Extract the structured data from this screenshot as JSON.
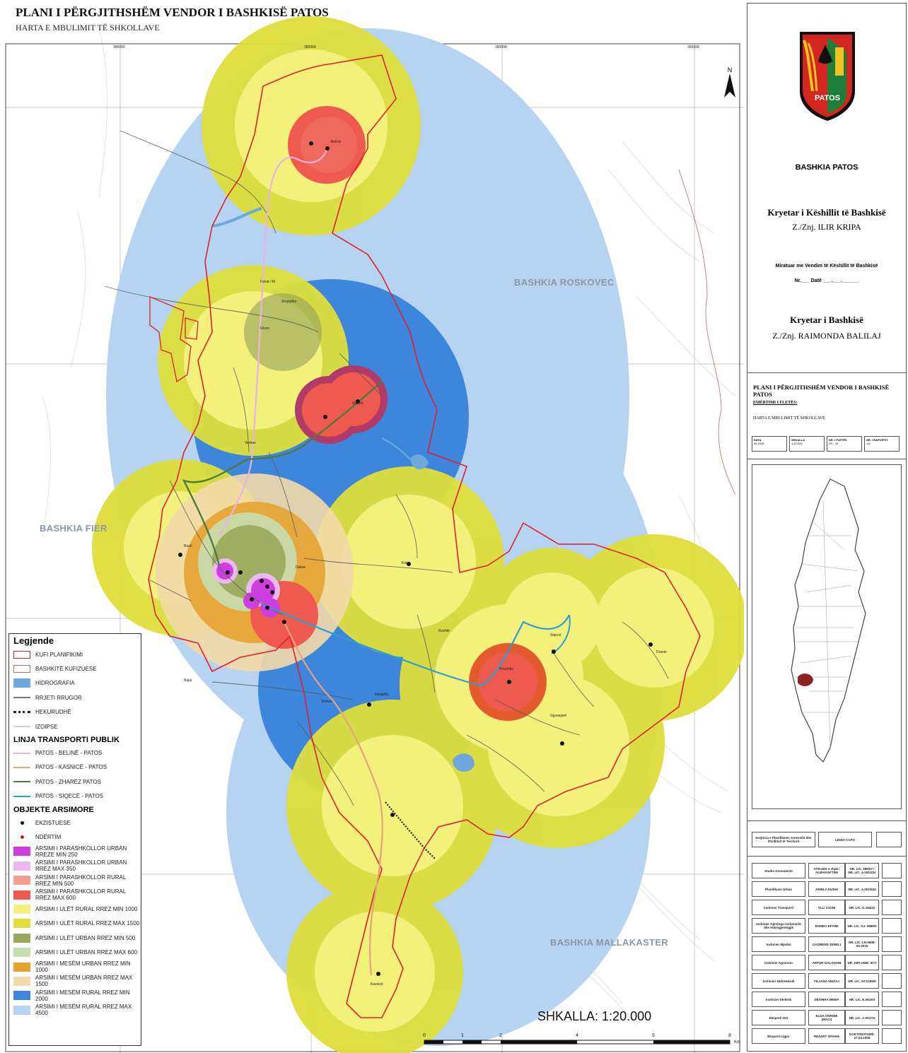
{
  "header": {
    "title": "PLANI I PËRGJITHSHËM VENDOR I BASHKISË PATOS",
    "subtitle": "HARTA E MBULIMIT TË SHKOLLAVE"
  },
  "map": {
    "grid_labels_top": [
      "380000",
      "385000",
      "390000",
      "395000"
    ],
    "grid_labels_left": [
      "4514000",
      "4507000",
      "4500000",
      "4493000"
    ],
    "neighbor_labels": {
      "fier": "BASHKIA FIER",
      "roskovec": "BASHKIA ROSKOVEC",
      "mallakaster": "BASHKIA MALLAKASTER"
    },
    "places": {
      "belinë": "Belinë",
      "fshat_ri": "Fshat i Ri",
      "shqepthe": "Shqepthe",
      "fitore": "Fitore",
      "zharzë": "Zharzë",
      "verbas": "Verbas",
      "ruzh": "Ruzh",
      "qitet": "Qitet",
      "dukas": "Dukas",
      "kuta": "Kuta",
      "rushtë": "Rushtë",
      "marinëz": "Marinëz",
      "margëlliç": "Margëlliç",
      "rehas": "Rehas",
      "bajul": "Bajul",
      "sheqaj": "Sheqaj",
      "rruzhdie": "Rruzhdie",
      "gjynaqarë": "Gjynaqarë",
      "siqecë": "Siqecë",
      "dranie": "Dranie",
      "kasnicë": "Kasnicë",
      "patos": "Patos"
    },
    "scale_text": "SHKALLA: 1:20.000",
    "scale_ticks": [
      "0",
      "1",
      "2",
      "4",
      "6",
      "8"
    ],
    "scale_unit": "Km",
    "north": "N"
  },
  "legend": {
    "title": "Legjende",
    "section_transport": "LINJA TRANSPORTI PUBLIK",
    "section_schools": "OBJEKTE ARSIMORE",
    "items": [
      {
        "label": "KUFI PLANIFIKIMI",
        "color": "#e0202a",
        "kind": "boundary"
      },
      {
        "label": "BASHKITË KUFIZUESE",
        "color": "#b07060",
        "kind": "boundary_thin"
      },
      {
        "label": "HIDROGRAFIA",
        "color": "#6fa8dc",
        "kind": "fill"
      },
      {
        "label": "RRJETI RRUGOR",
        "color": "#777777",
        "kind": "line"
      },
      {
        "label": "HEKURUDHË",
        "color": "#222222",
        "kind": "rail"
      },
      {
        "label": "IZOIPSE",
        "color": "#cfcfcf",
        "kind": "line"
      }
    ],
    "transport": [
      {
        "label": "PATOS - BELINË - PATOS",
        "color": "#e9b3e6"
      },
      {
        "label": "PATOS - KASNICË - PATOS",
        "color": "#e8a27c"
      },
      {
        "label": "PATOS - ZHARËZ PATOS",
        "color": "#4e7a3a"
      },
      {
        "label": "PATOS - SIQECË - PATOS",
        "color": "#2a9fd6"
      }
    ],
    "schools": [
      {
        "label": "EKZISTUESE",
        "color": "#111111",
        "kind": "dot"
      },
      {
        "label": "NDËRTIM",
        "color": "#b52020",
        "kind": "dot"
      },
      {
        "label": "ARSIMI I PARASHKOLLOR URBAN RREZE MIN 250",
        "color": "#cf3fe0",
        "kind": "fill"
      },
      {
        "label": "ARSIMI I PARASHKOLLOR URBAN RREZ MAX 350",
        "color": "#eab9ef",
        "kind": "fill"
      },
      {
        "label": "ARSIMI I PARASHKOLLOR RURAL RREZ MIN 500",
        "color": "#f2a090",
        "kind": "fill"
      },
      {
        "label": "ARSIMI I PARASHKOLLOR RURAL RREZ MAX 600",
        "color": "#ef5a4e",
        "kind": "fill"
      },
      {
        "label": "ARSIMI I ULËT RURAL RREZ MIN 1000",
        "color": "#f4f07c",
        "kind": "fill"
      },
      {
        "label": "ARSIMI I ULËT RURAL RREZ MAX 1500",
        "color": "#dede3c",
        "kind": "fill"
      },
      {
        "label": "ARSIMI I ULËT URBAN RREZ MIN 500",
        "color": "#99a85a",
        "kind": "fill"
      },
      {
        "label": "ARSIMI I ULËT URBAN RREZ MAX 600",
        "color": "#c6ddb0",
        "kind": "fill"
      },
      {
        "label": "ARSIMI I MESËM URBAN RREZ MIN 1000",
        "color": "#e6a330",
        "kind": "fill"
      },
      {
        "label": "ARSIMI I MESËM URBAN RREZ MAX 1500",
        "color": "#f3d9a8",
        "kind": "fill"
      },
      {
        "label": "ARSIMI I MESËM RURAL RREZ MIN 2000",
        "color": "#3d86dc",
        "kind": "fill"
      },
      {
        "label": "ARSIMI I MESËM RURAL RREZ MAX 4500",
        "color": "#b6d3f2",
        "kind": "fill"
      }
    ]
  },
  "panel": {
    "emblem_text": "PATOS",
    "org": "BASHKIA PATOS",
    "council_role": "Kryetar i Këshillit të Bashkisë",
    "council_name": "Z./Znj. ILIR KRIPA",
    "approval": "Miratuar me Vendim të Këshillit të Bashkisë",
    "approval_no": "Nr.___ Datë ___.___.______",
    "mayor_role": "Kryetar i Bashkisë",
    "mayor_name": "Z./Znj. RAIMONDA BALILAJ",
    "plan_title": "PLANI I PËRGJITHSHËM VENDOR I BASHKISË PATOS",
    "sheet_label": "EMËRTIMI I FLETËS:",
    "sheet_name": "HARTA E MBULIMIT TË SHKOLLAVE",
    "meta": [
      {
        "k": "DATA",
        "v": "06.2016"
      },
      {
        "k": "SHKALLA",
        "v": "1:20.000"
      },
      {
        "k": "NR. I FLETËS",
        "v": "ZH - 16"
      },
      {
        "k": "NR. I RAPORTIT",
        "v": "1:6"
      }
    ],
    "director_role": "Drejtoria e Planifikimit, Kontrollit dhe Zhvillimit të Territorit",
    "director_name": "LEDIO CAPO",
    "credits": [
      {
        "role": "Studio Konsulente",
        "name": "ATELIER 4 shpk / ALBAN EFTIMI",
        "lic": "NR. LIC. 586/07 / NR. LIC. A.001/422"
      },
      {
        "role": "Planifikues Urban",
        "name": "ARIELA KUSHI",
        "lic": "NR. LIC. A.001/544"
      },
      {
        "role": "Inxhinier Transporti",
        "name": "YLLI XJONI",
        "lic": "NR. LIC. K.154/22"
      },
      {
        "role": "Inxhinier Gjeologo-inxhinierik dhe Hidrogjeologjik",
        "name": "ROMEO EFTIMI",
        "lic": "NR. LIC. GJ. 0889/3"
      },
      {
        "role": "Inxhinier Mjedisi",
        "name": "GAZMEND ZENELI",
        "lic": "NR. LIC. LN-0609-05-2015"
      },
      {
        "role": "Inxhinier Agronom",
        "name": "ARTUR GALANXHI",
        "lic": "NR. DIPLOME: 3/77"
      },
      {
        "role": "Inxhinier Hidroteknik",
        "name": "FILJANA VEIZAJ",
        "lic": "NR. LIC. HT.0195/9"
      },
      {
        "role": "Inxhinier Elektrik",
        "name": "DËSHIRA MEMA",
        "lic": "NR. LIC. E.0619/3"
      },
      {
        "role": "Eksperti GIS",
        "name": "ELDA VORDHI (MACI)",
        "lic": "NR. LIC. A.001/72"
      },
      {
        "role": "Eksperti Ligjor",
        "name": "REZART SPAHIA",
        "lic": "DOKTORATURË: 27.03.2008"
      }
    ]
  }
}
